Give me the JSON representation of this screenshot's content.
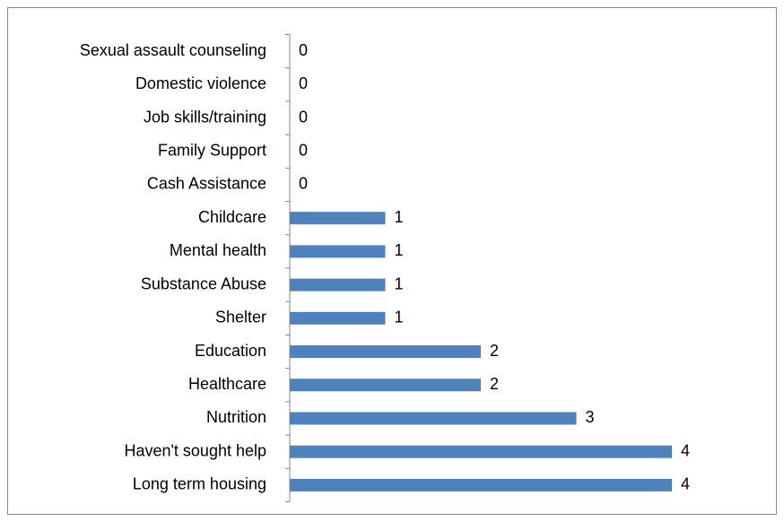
{
  "chart_data": {
    "type": "bar",
    "orientation": "horizontal",
    "categories": [
      "Sexual assault counseling",
      "Domestic violence",
      "Job skills/training",
      "Family Support",
      "Cash Assistance",
      "Childcare",
      "Mental health",
      "Substance Abuse",
      "Shelter",
      "Education",
      "Healthcare",
      "Nutrition",
      "Haven't sought help",
      "Long term housing"
    ],
    "values": [
      0,
      0,
      0,
      0,
      0,
      1,
      1,
      1,
      1,
      2,
      2,
      3,
      4,
      4
    ],
    "color": "#4f81bd"
  }
}
